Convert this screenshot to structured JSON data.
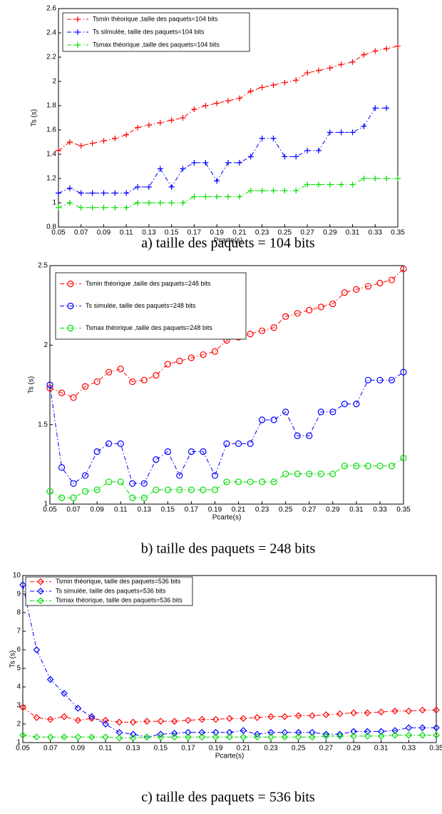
{
  "chart_data": [
    {
      "type": "line",
      "caption": "a) taille des paquets = 104 bits",
      "xlabel": "Pcarte(s)",
      "ylabel": "Ts (s)",
      "marker": "plus",
      "line_style": "dashdot",
      "x": [
        0.05,
        0.06,
        0.07,
        0.08,
        0.09,
        0.1,
        0.11,
        0.12,
        0.13,
        0.14,
        0.15,
        0.16,
        0.17,
        0.18,
        0.19,
        0.2,
        0.21,
        0.22,
        0.23,
        0.24,
        0.25,
        0.26,
        0.27,
        0.28,
        0.29,
        0.3,
        0.31,
        0.32,
        0.33,
        0.34,
        0.35
      ],
      "xlim": [
        0.05,
        0.35
      ],
      "xticks": [
        0.05,
        0.07,
        0.09,
        0.11,
        0.13,
        0.15,
        0.17,
        0.19,
        0.21,
        0.23,
        0.25,
        0.27,
        0.29,
        0.31,
        0.33,
        0.35
      ],
      "ylim": [
        0.8,
        2.6
      ],
      "yticks": [
        0.8,
        1,
        1.2,
        1.4,
        1.6,
        1.8,
        2,
        2.2,
        2.4,
        2.6
      ],
      "series": [
        {
          "name": "Tsmin théorique ,taille des paquets=104 bits",
          "color": "#ff0000",
          "values": [
            1.43,
            1.5,
            1.47,
            1.49,
            1.51,
            1.53,
            1.56,
            1.62,
            1.64,
            1.66,
            1.68,
            1.7,
            1.77,
            1.8,
            1.82,
            1.84,
            1.86,
            1.92,
            1.95,
            1.97,
            1.99,
            2.01,
            2.07,
            2.09,
            2.11,
            2.14,
            2.16,
            2.22,
            2.25,
            2.27,
            2.29
          ]
        },
        {
          "name": "Ts silmulée, taille des paquets=104 bits",
          "color": "#0000ff",
          "values": [
            1.08,
            1.12,
            1.08,
            1.08,
            1.08,
            1.08,
            1.08,
            1.13,
            1.13,
            1.28,
            1.13,
            1.28,
            1.33,
            1.33,
            1.18,
            1.33,
            1.33,
            1.38,
            1.53,
            1.53,
            1.38,
            1.38,
            1.43,
            1.43,
            1.58,
            1.58,
            1.58,
            1.63,
            1.78,
            1.78,
            null
          ]
        },
        {
          "name": "Tsmax théorique ,taille des paquets=104 bits",
          "color": "#00dd00",
          "values": [
            0.96,
            1.0,
            0.96,
            0.96,
            0.96,
            0.96,
            0.96,
            1.0,
            1.0,
            1.0,
            1.0,
            1.0,
            1.05,
            1.05,
            1.05,
            1.05,
            1.05,
            1.1,
            1.1,
            1.1,
            1.1,
            1.1,
            1.15,
            1.15,
            1.15,
            1.15,
            1.15,
            1.2,
            1.2,
            1.2,
            1.2
          ]
        }
      ]
    },
    {
      "type": "line",
      "caption": "b) taille des paquets = 248 bits",
      "xlabel": "Pcarte(s)",
      "ylabel": "Ts (s)",
      "marker": "circle",
      "line_style": "dashdot",
      "x": [
        0.05,
        0.06,
        0.07,
        0.08,
        0.09,
        0.1,
        0.11,
        0.12,
        0.13,
        0.14,
        0.15,
        0.16,
        0.17,
        0.18,
        0.19,
        0.2,
        0.21,
        0.22,
        0.23,
        0.24,
        0.25,
        0.26,
        0.27,
        0.28,
        0.29,
        0.3,
        0.31,
        0.32,
        0.33,
        0.34,
        0.35
      ],
      "xlim": [
        0.05,
        0.35
      ],
      "xticks": [
        0.05,
        0.07,
        0.09,
        0.11,
        0.13,
        0.15,
        0.17,
        0.19,
        0.21,
        0.23,
        0.25,
        0.27,
        0.29,
        0.31,
        0.33,
        0.35
      ],
      "ylim": [
        1,
        2.5
      ],
      "yticks": [
        1,
        1.5,
        2,
        2.5
      ],
      "series": [
        {
          "name": "Tsmin théorique ,taille des paquets=248 bits",
          "color": "#ff0000",
          "values": [
            1.73,
            1.7,
            1.67,
            1.74,
            1.77,
            1.83,
            1.85,
            1.77,
            1.78,
            1.81,
            1.88,
            1.9,
            1.92,
            1.94,
            1.96,
            2.03,
            2.05,
            2.07,
            2.09,
            2.11,
            2.18,
            2.2,
            2.22,
            2.24,
            2.26,
            2.33,
            2.35,
            2.37,
            2.39,
            2.41,
            2.48
          ]
        },
        {
          "name": "Ts simulée, taille des paquets=248 bits",
          "color": "#0000ff",
          "values": [
            1.75,
            1.23,
            1.13,
            1.18,
            1.33,
            1.38,
            1.38,
            1.13,
            1.13,
            1.28,
            1.33,
            1.18,
            1.33,
            1.33,
            1.18,
            1.38,
            1.38,
            1.38,
            1.53,
            1.53,
            1.58,
            1.43,
            1.43,
            1.58,
            1.58,
            1.63,
            1.63,
            1.78,
            1.78,
            1.78,
            1.83
          ]
        },
        {
          "name": "Tsmax théorique ,taille des paquets=248 bits",
          "color": "#00dd00",
          "values": [
            1.08,
            1.04,
            1.04,
            1.08,
            1.09,
            1.14,
            1.14,
            1.04,
            1.04,
            1.09,
            1.09,
            1.09,
            1.09,
            1.09,
            1.09,
            1.14,
            1.14,
            1.14,
            1.14,
            1.14,
            1.19,
            1.19,
            1.19,
            1.19,
            1.19,
            1.24,
            1.24,
            1.24,
            1.24,
            1.24,
            1.29
          ]
        }
      ]
    },
    {
      "type": "line",
      "caption": "c) taille des paquets = 536 bits",
      "xlabel": "Pcarte(s)",
      "ylabel": "Ts (s)",
      "marker": "diamond",
      "line_style": "dashdot",
      "x": [
        0.05,
        0.06,
        0.07,
        0.08,
        0.09,
        0.1,
        0.11,
        0.12,
        0.13,
        0.14,
        0.15,
        0.16,
        0.17,
        0.18,
        0.19,
        0.2,
        0.21,
        0.22,
        0.23,
        0.24,
        0.25,
        0.26,
        0.27,
        0.28,
        0.29,
        0.3,
        0.31,
        0.32,
        0.33,
        0.34,
        0.35
      ],
      "xlim": [
        0.05,
        0.35
      ],
      "xticks": [
        0.05,
        0.07,
        0.09,
        0.11,
        0.13,
        0.15,
        0.17,
        0.19,
        0.21,
        0.23,
        0.25,
        0.27,
        0.29,
        0.31,
        0.33,
        0.35
      ],
      "ylim": [
        1,
        10
      ],
      "yticks": [
        1,
        2,
        3,
        4,
        5,
        6,
        7,
        8,
        9,
        10
      ],
      "series": [
        {
          "name": "Tsmin théorique, taille des paquets=536 bits",
          "color": "#ff0000",
          "values": [
            2.9,
            2.35,
            2.25,
            2.4,
            2.2,
            2.3,
            2.2,
            2.1,
            2.1,
            2.15,
            2.15,
            2.15,
            2.2,
            2.25,
            2.25,
            2.3,
            2.3,
            2.35,
            2.4,
            2.4,
            2.45,
            2.45,
            2.5,
            2.55,
            2.6,
            2.6,
            2.65,
            2.7,
            2.7,
            2.75,
            2.75
          ]
        },
        {
          "name": "Ts simulée, taille des paquets=536 bits",
          "color": "#0000ff",
          "values": [
            9.5,
            6.0,
            4.4,
            3.65,
            2.85,
            2.4,
            2.0,
            1.55,
            1.45,
            1.3,
            1.45,
            1.5,
            1.55,
            1.55,
            1.55,
            1.55,
            1.65,
            1.45,
            1.55,
            1.55,
            1.55,
            1.55,
            1.45,
            1.45,
            1.6,
            1.6,
            1.6,
            1.65,
            1.8,
            1.8,
            1.8
          ]
        },
        {
          "name": "Tsmax théorique, taille des paquets=536 bits",
          "color": "#00dd00",
          "values": [
            1.4,
            1.3,
            1.3,
            1.3,
            1.3,
            1.3,
            1.3,
            1.25,
            1.25,
            1.3,
            1.3,
            1.3,
            1.3,
            1.3,
            1.3,
            1.3,
            1.3,
            1.3,
            1.3,
            1.3,
            1.3,
            1.3,
            1.35,
            1.35,
            1.35,
            1.35,
            1.35,
            1.4,
            1.4,
            1.4,
            1.4
          ]
        }
      ]
    }
  ]
}
